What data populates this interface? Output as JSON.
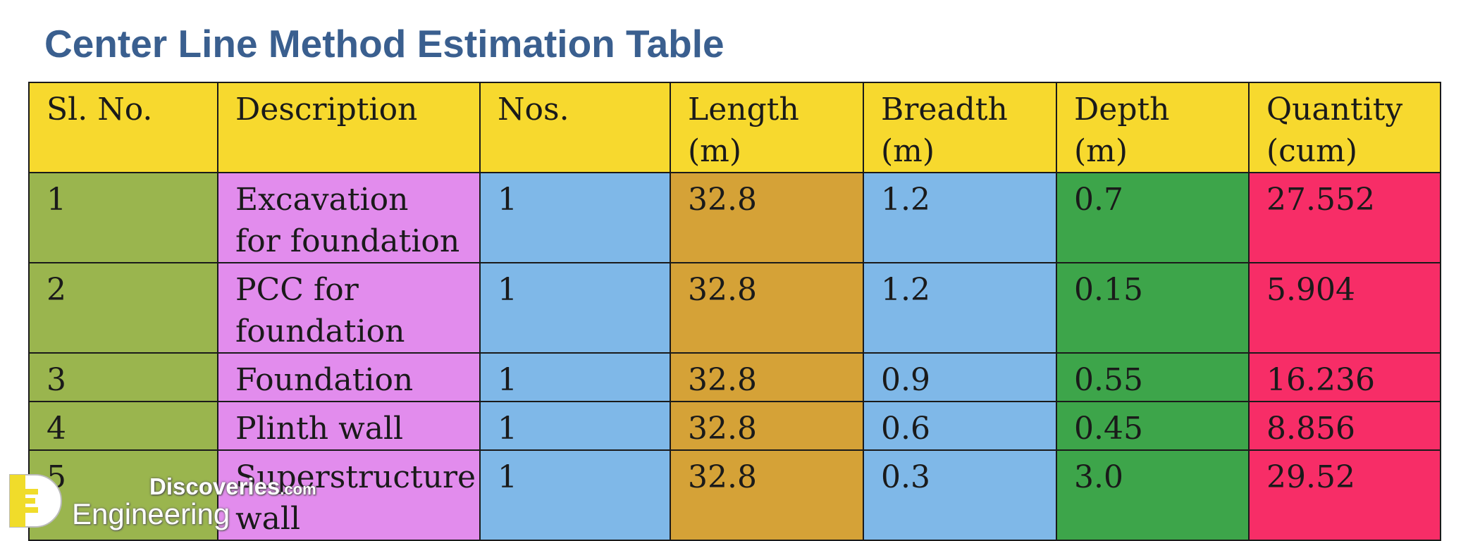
{
  "title": "Center Line Method Estimation Table",
  "table": {
    "headers": [
      "Sl. No.",
      "Description",
      "Nos.",
      "Length (m)",
      "Breadth (m)",
      "Depth (m)",
      "Quantity (cum)"
    ],
    "rows": [
      [
        "1",
        "Excavation for foundation",
        "1",
        "32.8",
        "1.2",
        "0.7",
        "27.552"
      ],
      [
        "2",
        "PCC for foundation",
        "1",
        "32.8",
        "1.2",
        "0.15",
        "5.904"
      ],
      [
        "3",
        "Foundation",
        "1",
        "32.8",
        "0.9",
        "0.55",
        "16.236"
      ],
      [
        "4",
        "Plinth wall",
        "1",
        "32.8",
        "0.6",
        "0.45",
        "8.856"
      ],
      [
        "5",
        "Superstructure wall",
        "1",
        "32.8",
        "0.3",
        "3.0",
        "29.52"
      ]
    ]
  },
  "colors": {
    "title": "#3a5f8f",
    "header": "#f7d92e",
    "columns": [
      "#9ab54e",
      "#e28ced",
      "#7fb8e8",
      "#d5a237",
      "#7fb8e8",
      "#3da54a",
      "#f72d67"
    ]
  },
  "watermark": {
    "line1": "Discoveries",
    "line1_suffix": ".com",
    "line2": "Engineering"
  }
}
